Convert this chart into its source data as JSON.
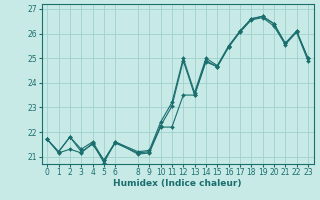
{
  "xlabel": "Humidex (Indice chaleur)",
  "background_color": "#c8eae6",
  "grid_color": "#a0d0cc",
  "line_color": "#1a6e6e",
  "xlim": [
    -0.5,
    23.5
  ],
  "ylim": [
    20.7,
    27.2
  ],
  "yticks": [
    21,
    22,
    23,
    24,
    25,
    26,
    27
  ],
  "xticks": [
    0,
    1,
    2,
    3,
    4,
    5,
    6,
    8,
    9,
    10,
    11,
    12,
    13,
    14,
    15,
    16,
    17,
    18,
    19,
    20,
    21,
    22,
    23
  ],
  "line1_x": [
    0,
    1,
    2,
    3,
    4,
    5,
    6,
    8,
    9,
    10,
    11,
    12,
    13,
    14,
    15,
    16,
    17,
    18,
    19,
    20,
    21,
    22,
    23
  ],
  "line1_y": [
    21.7,
    21.2,
    21.8,
    21.2,
    21.5,
    20.85,
    21.55,
    21.15,
    21.2,
    22.25,
    23.05,
    24.9,
    23.5,
    24.9,
    24.65,
    25.45,
    26.1,
    26.6,
    26.7,
    26.4,
    25.6,
    26.1,
    25.0
  ],
  "line2_x": [
    0,
    1,
    2,
    3,
    4,
    5,
    6,
    8,
    9,
    10,
    11,
    12,
    13,
    14,
    15,
    16,
    17,
    18,
    19,
    20,
    21,
    22,
    23
  ],
  "line2_y": [
    21.7,
    21.2,
    21.8,
    21.3,
    21.6,
    20.85,
    21.6,
    21.2,
    21.25,
    22.4,
    23.2,
    25.0,
    23.6,
    25.0,
    24.7,
    25.5,
    26.1,
    26.6,
    26.7,
    26.4,
    25.6,
    26.1,
    25.0
  ],
  "line3_x": [
    0,
    1,
    2,
    3,
    4,
    5,
    6,
    8,
    9,
    10,
    11,
    12,
    13,
    14,
    15,
    16,
    17,
    18,
    19,
    20,
    21,
    22,
    23
  ],
  "line3_y": [
    21.7,
    21.15,
    21.3,
    21.15,
    21.55,
    20.75,
    21.6,
    21.1,
    21.15,
    22.2,
    22.2,
    23.5,
    23.5,
    24.85,
    24.65,
    25.45,
    26.05,
    26.55,
    26.65,
    26.3,
    25.55,
    26.05,
    24.9
  ]
}
